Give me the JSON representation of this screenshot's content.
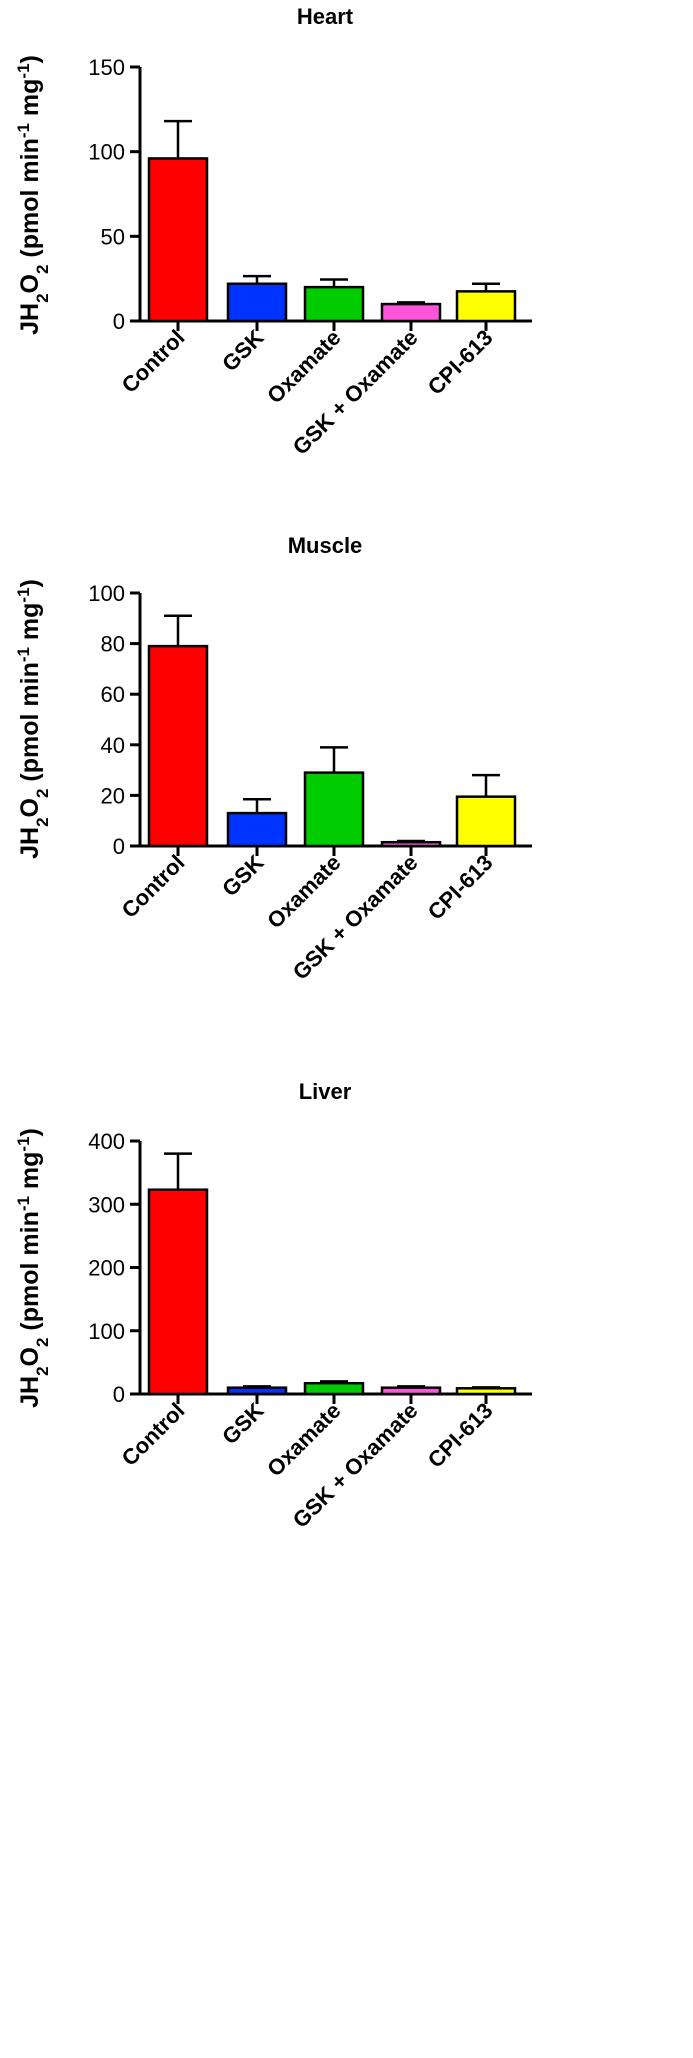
{
  "chart_data": [
    {
      "type": "bar",
      "title": "Heart",
      "ylabel_parts": [
        "JH",
        "2",
        "O",
        "2",
        " (pmol min",
        "-1",
        " mg",
        "-1",
        ")"
      ],
      "categories": [
        "Control",
        "GSK",
        "Oxamate",
        "GSK + Oxamate",
        "CPI-613"
      ],
      "values": [
        96,
        22,
        20,
        10,
        17.5
      ],
      "errors": [
        22,
        4.5,
        4.5,
        1,
        4.5
      ],
      "colors": [
        "#ff0000",
        "#0033ff",
        "#00cc00",
        "#ff55dd",
        "#ffff00"
      ],
      "ylim": [
        0,
        150
      ],
      "yticks": [
        0,
        50,
        100,
        150
      ],
      "grid": false
    },
    {
      "type": "bar",
      "title": "Muscle",
      "ylabel_parts": [
        "JH",
        "2",
        "O",
        "2",
        " (pmol min",
        "-1",
        " mg",
        "-1",
        ")"
      ],
      "categories": [
        "Control",
        "GSK",
        "Oxamate",
        "GSK + Oxamate",
        "CPI-613"
      ],
      "values": [
        79,
        13,
        29,
        1.5,
        19.5
      ],
      "errors": [
        12,
        5.5,
        10,
        0.5,
        8.5
      ],
      "colors": [
        "#ff0000",
        "#0033ff",
        "#00cc00",
        "#ff55dd",
        "#ffff00"
      ],
      "ylim": [
        0,
        100
      ],
      "yticks": [
        0,
        20,
        40,
        60,
        80,
        100
      ],
      "grid": false
    },
    {
      "type": "bar",
      "title": "Liver",
      "ylabel_parts": [
        "JH",
        "2",
        "O",
        "2",
        " (pmol min",
        "-1",
        " mg",
        "-1",
        ")"
      ],
      "categories": [
        "Control",
        "GSK",
        "Oxamate",
        "GSK + Oxamate",
        "CPI-613"
      ],
      "values": [
        323,
        10,
        17,
        10,
        9
      ],
      "errors": [
        57,
        2,
        3,
        2,
        1.5
      ],
      "colors": [
        "#ff0000",
        "#0033ff",
        "#00cc00",
        "#ff55dd",
        "#ffff00"
      ],
      "ylim": [
        0,
        400
      ],
      "yticks": [
        0,
        100,
        200,
        300,
        400
      ],
      "grid": false
    }
  ]
}
